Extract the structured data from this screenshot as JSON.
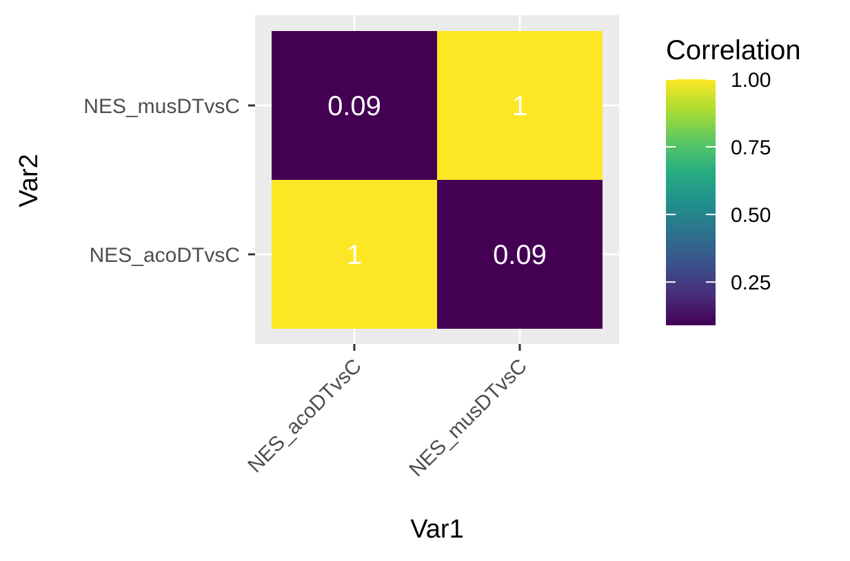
{
  "chart_data": {
    "type": "heatmap",
    "xlabel": "Var1",
    "ylabel": "Var2",
    "x_categories": [
      "NES_acoDTvsC",
      "NES_musDTvsC"
    ],
    "y_categories": [
      "NES_acoDTvsC",
      "NES_musDTvsC"
    ],
    "cells": [
      {
        "x": "NES_acoDTvsC",
        "y": "NES_acoDTvsC",
        "value": 1.0,
        "label": "1"
      },
      {
        "x": "NES_musDTvsC",
        "y": "NES_acoDTvsC",
        "value": 0.09,
        "label": "0.09"
      },
      {
        "x": "NES_acoDTvsC",
        "y": "NES_musDTvsC",
        "value": 0.09,
        "label": "0.09"
      },
      {
        "x": "NES_musDTvsC",
        "y": "NES_musDTvsC",
        "value": 1.0,
        "label": "1"
      }
    ],
    "legend": {
      "title": "Correlation",
      "position": "right",
      "range": [
        0.09,
        1.0
      ],
      "breaks": [
        0.25,
        0.5,
        0.75,
        1.0
      ],
      "break_labels": [
        "0.25",
        "0.50",
        "0.75",
        "1.00"
      ]
    },
    "colors": {
      "palette": [
        "#440154",
        "#472D7B",
        "#3B528B",
        "#2C728E",
        "#21908C",
        "#27AD81",
        "#5DC863",
        "#AADC32",
        "#FDE725"
      ],
      "panel_background": "#EBEBEB",
      "gridline": "#FFFFFF",
      "cell_text": "#FFFFFF"
    }
  }
}
